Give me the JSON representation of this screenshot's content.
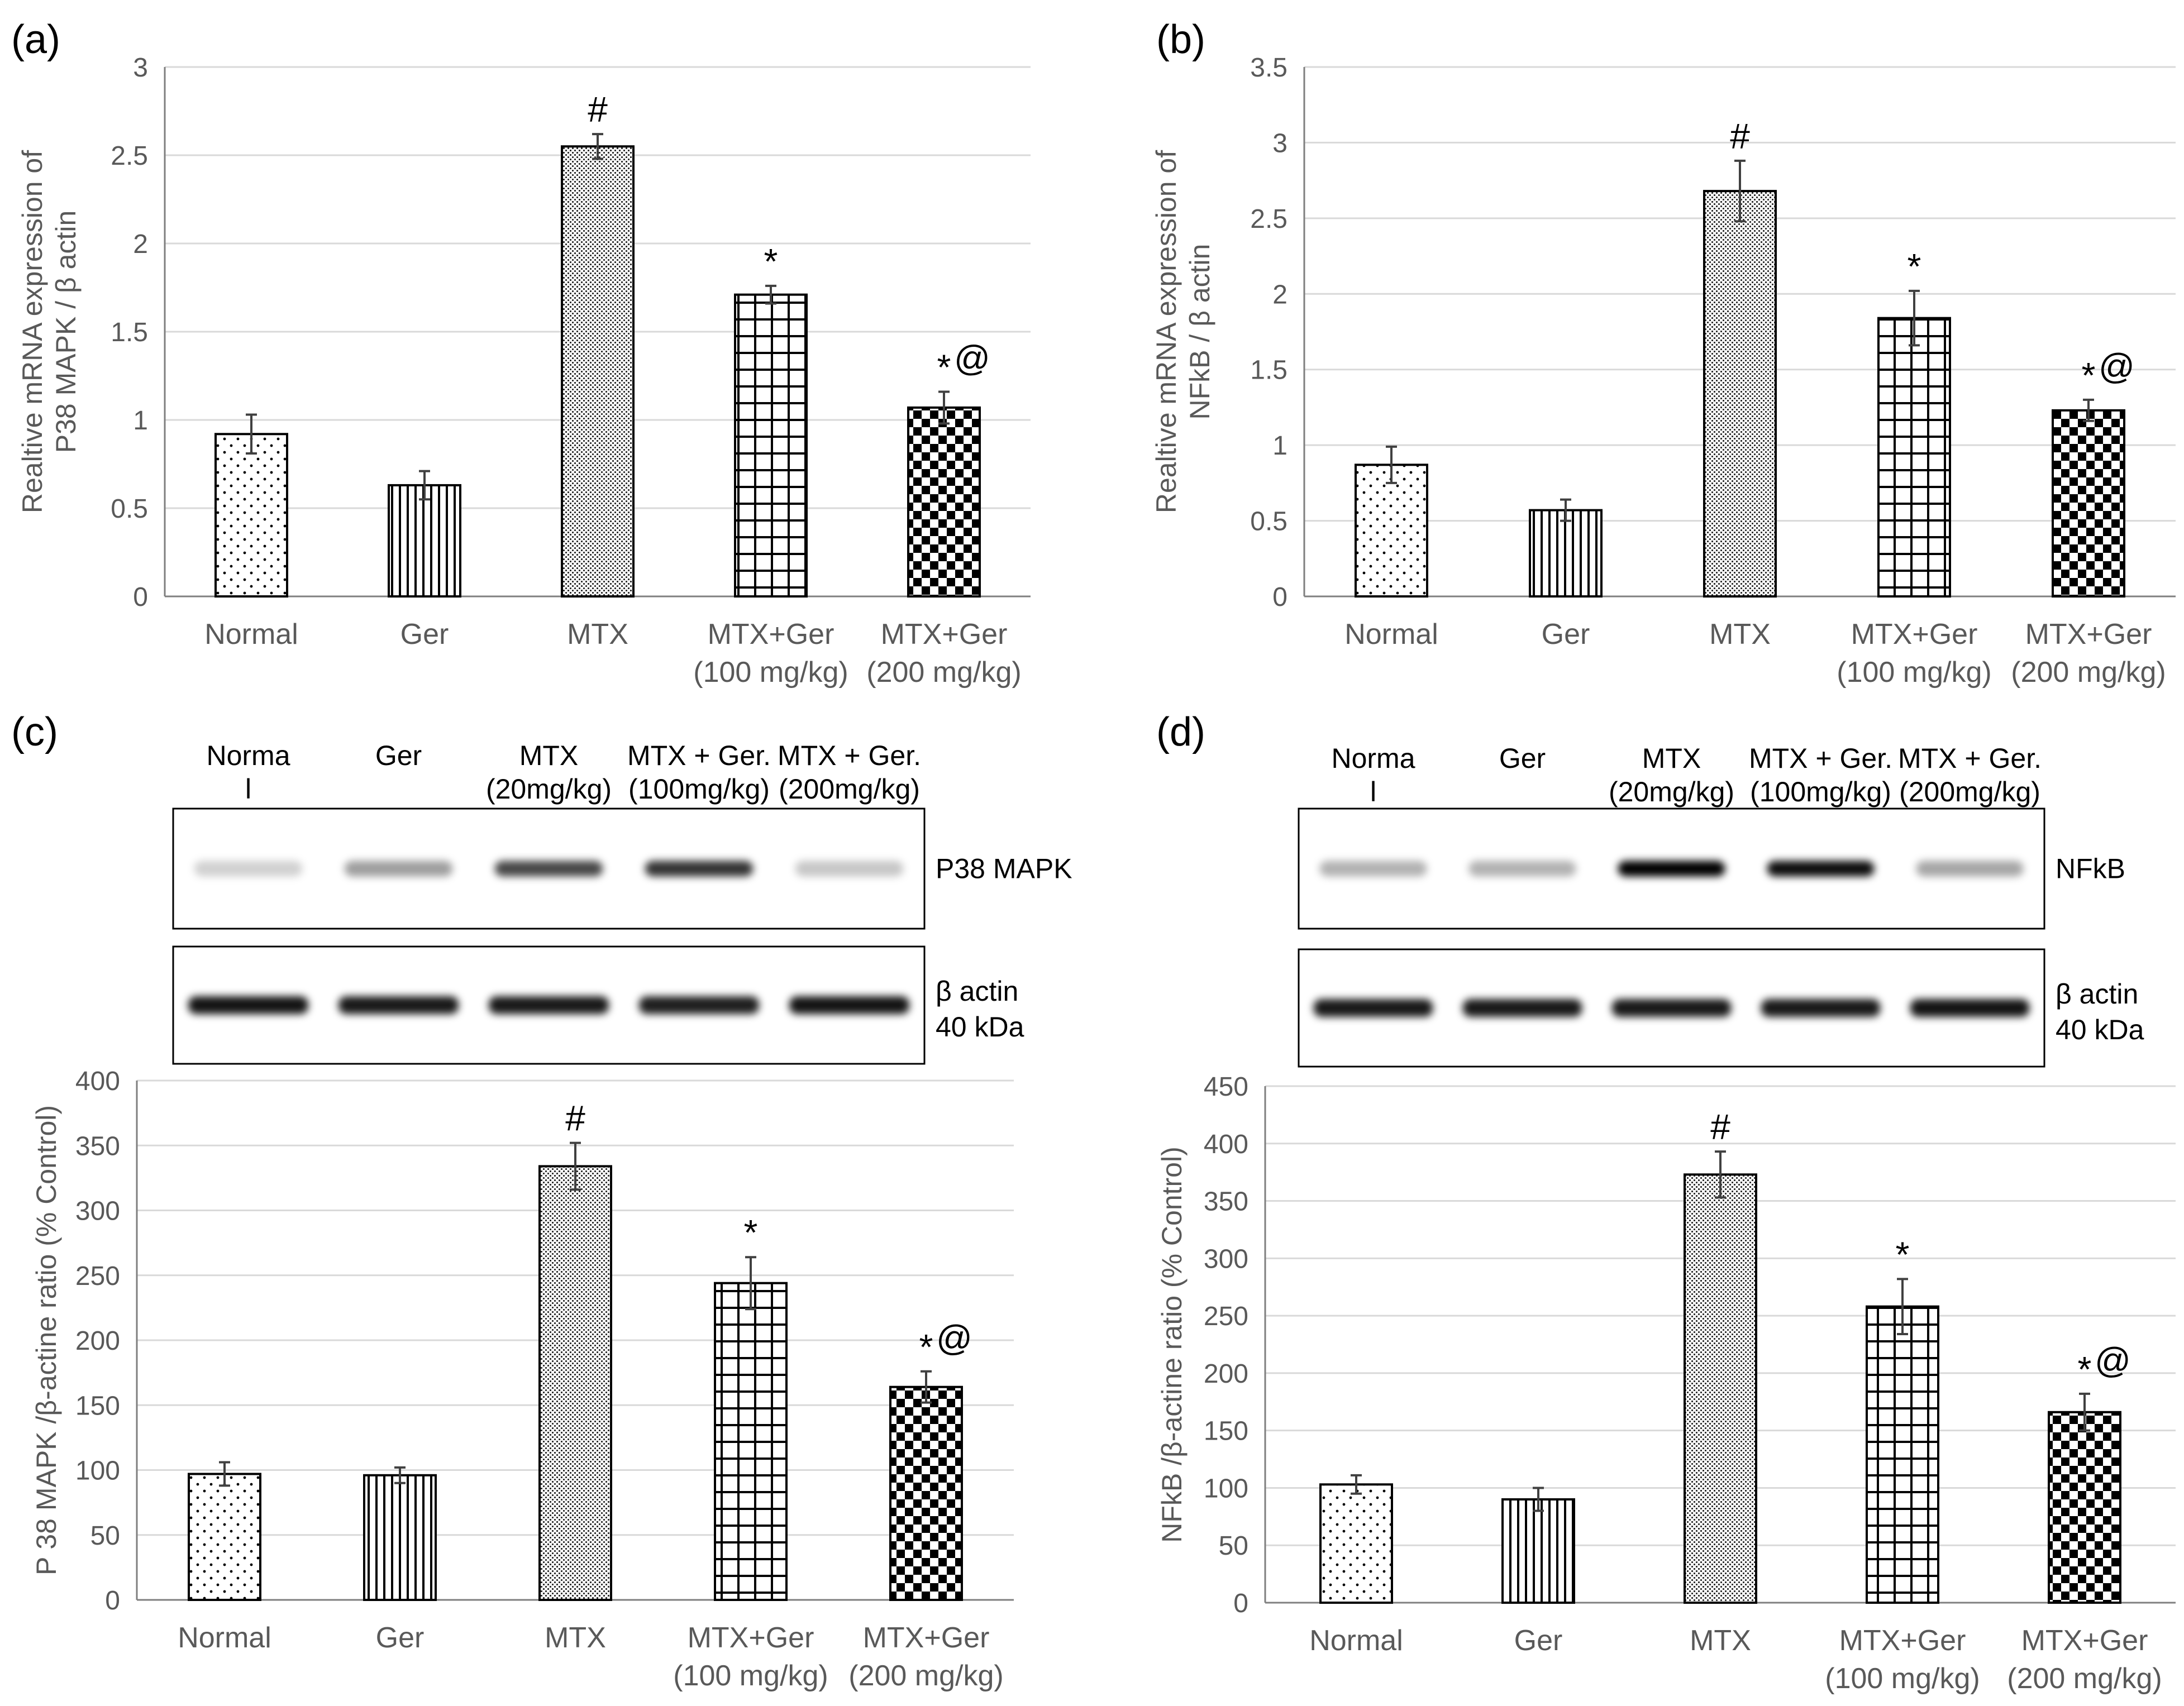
{
  "panel_labels": [
    "(a)",
    "(b)",
    "(c)",
    "(d)"
  ],
  "categories": [
    "Normal",
    "Ger",
    "MTX",
    "MTX+Ger|(100 mg/kg)",
    "MTX+Ger|(200 mg/kg)"
  ],
  "colors": {
    "grid": "#d9d9d9",
    "axis": "#7f7f7f",
    "text": "#595959",
    "bar_stroke": "#000000"
  },
  "chart_data": [
    {
      "id": "a",
      "type": "bar",
      "title": "",
      "ylabel": "Realtive mRNA expression of|P38 MAPK  / β actin",
      "ylim": [
        0,
        3
      ],
      "yticks": [
        0,
        0.5,
        1,
        1.5,
        2,
        2.5,
        3
      ],
      "categories": [
        "Normal",
        "Ger",
        "MTX",
        "MTX+Ger (100 mg/kg)",
        "MTX+Ger (200 mg/kg)"
      ],
      "values": [
        0.92,
        0.63,
        2.55,
        1.71,
        1.07
      ],
      "errors": [
        0.11,
        0.08,
        0.07,
        0.05,
        0.09
      ],
      "patterns": [
        "dots",
        "vlines",
        "fine",
        "grid",
        "checker"
      ],
      "annotations": [
        "",
        "",
        "#",
        "*",
        "*@"
      ]
    },
    {
      "id": "b",
      "type": "bar",
      "title": "",
      "ylabel": "Realtive mRNA expression of|NFkB / β actin",
      "ylim": [
        0,
        3.5
      ],
      "yticks": [
        0,
        0.5,
        1,
        1.5,
        2,
        2.5,
        3,
        3.5
      ],
      "categories": [
        "Normal",
        "Ger",
        "MTX",
        "MTX+Ger (100 mg/kg)",
        "MTX+Ger (200 mg/kg)"
      ],
      "values": [
        0.87,
        0.57,
        2.68,
        1.84,
        1.23
      ],
      "errors": [
        0.12,
        0.07,
        0.2,
        0.18,
        0.07
      ],
      "patterns": [
        "dots",
        "vlines",
        "fine",
        "grid",
        "checker"
      ],
      "annotations": [
        "",
        "",
        "#",
        "*",
        "*@"
      ]
    },
    {
      "id": "c",
      "type": "bar",
      "title": "",
      "ylabel": "P 38 MAPK /β-actine ratio (% Control)",
      "ylim": [
        0,
        400
      ],
      "yticks": [
        0,
        50,
        100,
        150,
        200,
        250,
        300,
        350,
        400
      ],
      "categories": [
        "Normal",
        "Ger",
        "MTX",
        "MTX+Ger (100 mg/kg)",
        "MTX+Ger (200 mg/kg)"
      ],
      "values": [
        97,
        96,
        334,
        244,
        164
      ],
      "errors": [
        9,
        6,
        18,
        20,
        12
      ],
      "patterns": [
        "dots",
        "vlines",
        "fine",
        "grid",
        "checker"
      ],
      "annotations": [
        "",
        "",
        "#",
        "*",
        "*@"
      ]
    },
    {
      "id": "d",
      "type": "bar",
      "title": "",
      "ylabel": "NFkB /β-actine ratio (% Control)",
      "ylim": [
        0,
        450
      ],
      "yticks": [
        0,
        50,
        100,
        150,
        200,
        250,
        300,
        350,
        400,
        450
      ],
      "categories": [
        "Normal",
        "Ger",
        "MTX",
        "MTX+Ger (100 mg/kg)",
        "MTX+Ger (200 mg/kg)"
      ],
      "values": [
        103,
        90,
        373,
        258,
        166
      ],
      "errors": [
        8,
        10,
        20,
        24,
        16
      ],
      "patterns": [
        "dots",
        "vlines",
        "fine",
        "grid",
        "checker"
      ],
      "annotations": [
        "",
        "",
        "#",
        "*",
        "*@"
      ]
    }
  ],
  "blots": [
    {
      "id": "c",
      "lanes": [
        "Norma|l",
        "Ger",
        "MTX|(20mg/kg)",
        "MTX + Ger.|(100mg/kg)",
        "MTX + Ger.|(200mg/kg)"
      ],
      "target_label": "P38 MAPK",
      "control_label": "β actin|40 kDa",
      "target_intensity": [
        0.18,
        0.38,
        0.72,
        0.8,
        0.22
      ],
      "control_intensity": [
        0.92,
        0.9,
        0.9,
        0.88,
        0.92
      ]
    },
    {
      "id": "d",
      "lanes": [
        "Norma|l",
        "Ger",
        "MTX|(20mg/kg)",
        "MTX + Ger.|(100mg/kg)",
        "MTX + Ger.|(200mg/kg)"
      ],
      "target_label": "NFkB",
      "control_label": "β actin|40 kDa",
      "target_intensity": [
        0.3,
        0.3,
        1.0,
        0.95,
        0.35
      ],
      "control_intensity": [
        0.9,
        0.9,
        0.9,
        0.9,
        0.92
      ]
    }
  ]
}
